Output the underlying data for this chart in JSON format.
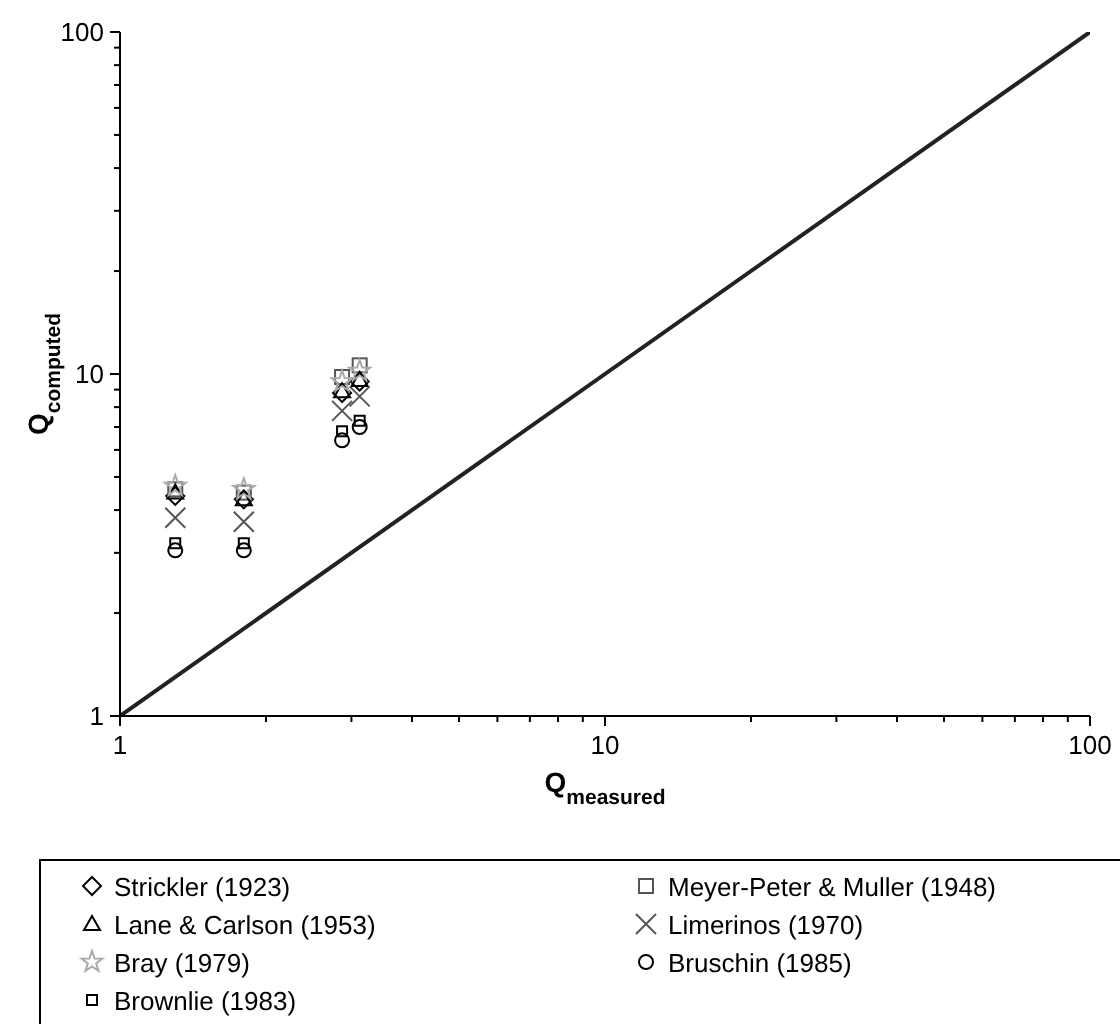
{
  "chart_data": {
    "type": "scatter",
    "xlabel": "Q$_{measured}$",
    "ylabel": "Q$_{computed}$",
    "log": "xy",
    "xlim": [
      1,
      100
    ],
    "ylim": [
      1,
      100
    ],
    "xticks": [
      1,
      {
        "value": 2,
        "label": null
      },
      {
        "value": 3,
        "label": null
      },
      {
        "value": 4,
        "label": null
      },
      {
        "value": 5,
        "label": null
      },
      {
        "value": 6,
        "label": null
      },
      {
        "value": 7,
        "label": null
      },
      {
        "value": 8,
        "label": null
      },
      {
        "value": 9,
        "label": null
      },
      10,
      {
        "value": 20,
        "label": null
      },
      {
        "value": 30,
        "label": null
      },
      {
        "value": 40,
        "label": null
      },
      {
        "value": 50,
        "label": null
      },
      {
        "value": 60,
        "label": null
      },
      {
        "value": 70,
        "label": null
      },
      {
        "value": 80,
        "label": null
      },
      {
        "value": 90,
        "label": null
      },
      100
    ],
    "yticks": [
      1,
      {
        "value": 2,
        "label": null
      },
      {
        "value": 3,
        "label": null
      },
      {
        "value": 4,
        "label": null
      },
      {
        "value": 5,
        "label": null
      },
      {
        "value": 6,
        "label": null
      },
      {
        "value": 7,
        "label": null
      },
      {
        "value": 8,
        "label": null
      },
      {
        "value": 9,
        "label": null
      },
      10,
      {
        "value": 20,
        "label": null
      },
      {
        "value": 30,
        "label": null
      },
      {
        "value": 40,
        "label": null
      },
      {
        "value": 50,
        "label": null
      },
      {
        "value": 60,
        "label": null
      },
      {
        "value": 70,
        "label": null
      },
      {
        "value": 80,
        "label": null
      },
      {
        "value": 90,
        "label": null
      },
      100
    ],
    "grid": false,
    "legend": "bottom",
    "series": [
      {
        "name": "Strickler (1923)",
        "color": "#000000",
        "marker": "diamond",
        "x": [
          1.3,
          1.8,
          2.87,
          3.12
        ],
        "values": [
          4.4,
          4.3,
          8.8,
          9.5
        ]
      },
      {
        "name": "Meyer-Peter & Muller (1948)",
        "color": "#555555",
        "marker": "square",
        "x": [
          1.3,
          1.8,
          2.87,
          3.12
        ],
        "values": [
          4.6,
          4.5,
          9.8,
          10.6
        ]
      },
      {
        "name": "Lane & Carlson (1953)",
        "color": "#000000",
        "marker": "triangle",
        "x": [
          1.3,
          1.8,
          2.87,
          3.12
        ],
        "values": [
          4.5,
          4.3,
          8.9,
          9.6
        ]
      },
      {
        "name": "Limerinos (1970)",
        "color": "#555555",
        "marker": "cross",
        "x": [
          1.3,
          1.8,
          2.87,
          3.12
        ],
        "values": [
          3.8,
          3.7,
          7.8,
          8.6
        ]
      },
      {
        "name": "Bray (1979)",
        "color": "#aaaaaa",
        "marker": "star",
        "x": [
          1.3,
          1.8,
          2.87,
          3.12
        ],
        "values": [
          4.7,
          4.6,
          9.5,
          10.2
        ]
      },
      {
        "name": "Bruschin (1985)",
        "color": "#000000",
        "marker": "circle",
        "x": [
          1.3,
          1.8,
          2.87,
          3.12
        ],
        "values": [
          3.05,
          3.05,
          6.4,
          7.0
        ]
      },
      {
        "name": "Brownlie (1983)",
        "color": "#000000",
        "marker": "square",
        "x": [
          1.3,
          1.8,
          2.87,
          3.12
        ],
        "values": [
          3.2,
          3.2,
          6.8,
          7.3
        ]
      },
      {
        "type": "line",
        "color": "#222222",
        "marker": "none",
        "x": [
          1,
          100
        ],
        "values": [
          1,
          100
        ]
      }
    ]
  }
}
